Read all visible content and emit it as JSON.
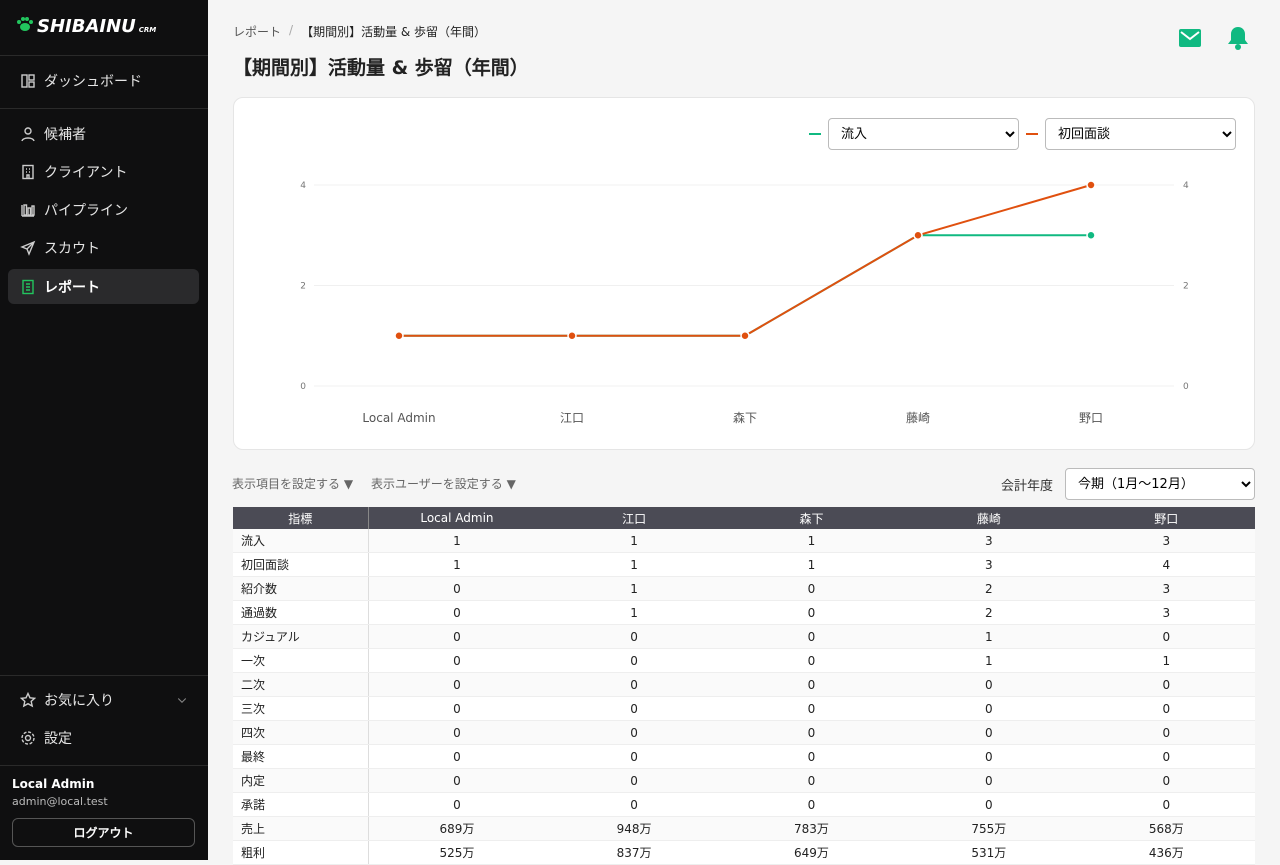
{
  "sidebar": {
    "logo": "SHIBAINU",
    "logo_sub": "CRM",
    "nav": [
      "ダッシュボード",
      "候補者",
      "クライアント",
      "パイプライン",
      "スカウト",
      "レポート"
    ],
    "favorites": "お気に入り",
    "settings": "設定",
    "user_name": "Local Admin",
    "user_email": "admin@local.test",
    "logout": "ログアウト"
  },
  "breadcrumb": [
    "レポート",
    "/",
    "【期間別】活動量 & 歩留（年間）"
  ],
  "title": "【期間別】活動量 & 歩留（年間）",
  "chart_data": {
    "type": "line",
    "categories": [
      "Local Admin",
      "江口",
      "森下",
      "藤崎",
      "野口"
    ],
    "series": [
      {
        "name": "流入",
        "color": "#10b981",
        "values": [
          1,
          1,
          1,
          3,
          3
        ]
      },
      {
        "name": "初回面談",
        "color": "#e0500f",
        "values": [
          1,
          1,
          1,
          3,
          4
        ]
      }
    ],
    "ylim": [
      0,
      4
    ],
    "yticks": [
      0,
      2,
      4
    ],
    "y2lim": [
      0,
      4
    ],
    "y2ticks": [
      0,
      2,
      4
    ],
    "grid": true
  },
  "controls": {
    "items": "表示項目を設定する ▼",
    "users": "表示ユーザーを設定する ▼",
    "fiscal_label": "会計年度",
    "fiscal_value": "今期（1月〜12月）"
  },
  "table": {
    "header": [
      "指標",
      "Local Admin",
      "江口",
      "森下",
      "藤崎",
      "野口"
    ],
    "rows": [
      [
        "流入",
        1,
        1,
        1,
        3,
        3
      ],
      [
        "初回面談",
        1,
        1,
        1,
        3,
        4
      ],
      [
        "紹介数",
        0,
        1,
        0,
        2,
        3
      ],
      [
        "通過数",
        0,
        1,
        0,
        2,
        3
      ],
      [
        "カジュアル",
        0,
        0,
        0,
        1,
        0
      ],
      [
        "一次",
        0,
        0,
        0,
        1,
        1
      ],
      [
        "二次",
        0,
        0,
        0,
        0,
        0
      ],
      [
        "三次",
        0,
        0,
        0,
        0,
        0
      ],
      [
        "四次",
        0,
        0,
        0,
        0,
        0
      ],
      [
        "最終",
        0,
        0,
        0,
        0,
        0
      ],
      [
        "内定",
        0,
        0,
        0,
        0,
        0
      ],
      [
        "承諾",
        0,
        0,
        0,
        0,
        0
      ],
      [
        "売上",
        "689万",
        "948万",
        "783万",
        "755万",
        "568万"
      ],
      [
        "粗利",
        "525万",
        "837万",
        "649万",
        "531万",
        "436万"
      ]
    ]
  }
}
